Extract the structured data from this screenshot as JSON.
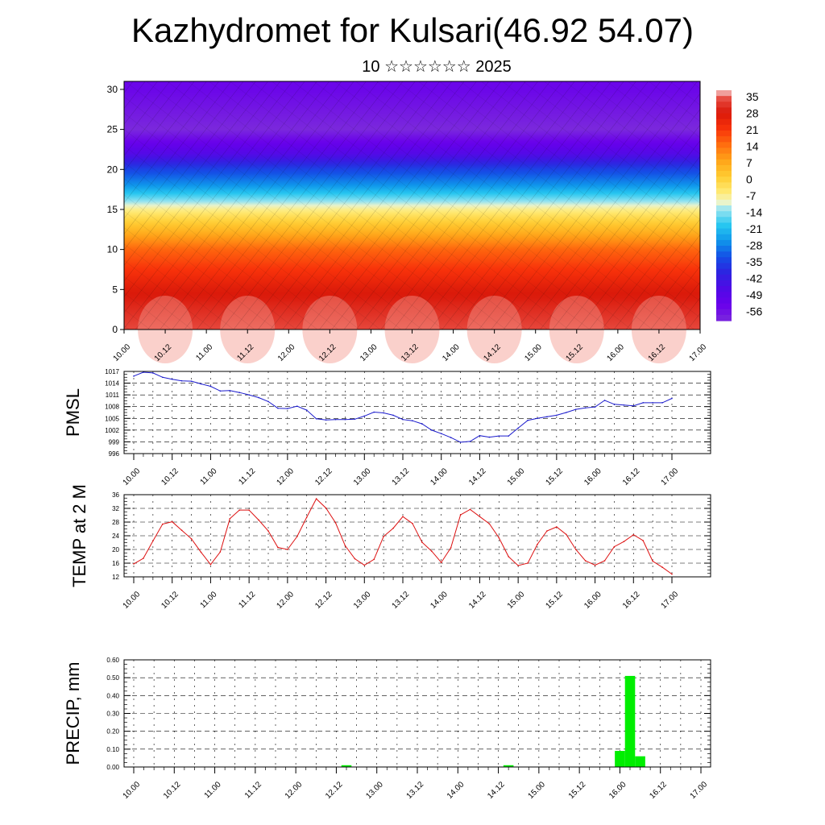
{
  "title": "Kazhydromet for Kulsari(46.92 54.07)",
  "subtitle": "10 ☆☆☆☆☆☆ 2025",
  "x_ticks": [
    "10.00",
    "10.12",
    "11.00",
    "11.12",
    "12.00",
    "12.12",
    "13.00",
    "13.12",
    "14.00",
    "14.12",
    "15.00",
    "15.12",
    "16.00",
    "16.12",
    "17.00"
  ],
  "chart_data": [
    {
      "type": "heatmap",
      "xlabel": "",
      "ylabel": "",
      "ylim": [
        0,
        30
      ],
      "y_ticks": [
        "0",
        "5",
        "10",
        "15",
        "20",
        "25",
        "30"
      ],
      "colorbar_ticks": [
        "35",
        "28",
        "21",
        "14",
        "7",
        "0",
        "-7",
        "-14",
        "-21",
        "-28",
        "-35",
        "-42",
        "-49",
        "-56"
      ],
      "colorbar_range": [
        -63,
        38
      ],
      "profile": [
        {
          "h": 0,
          "t": 34
        },
        {
          "h": 5,
          "t": 27
        },
        {
          "h": 10,
          "t": 15
        },
        {
          "h": 14,
          "t": -3
        },
        {
          "h": 15,
          "t": -8
        },
        {
          "h": 18,
          "t": -28
        },
        {
          "h": 20,
          "t": -37
        },
        {
          "h": 22,
          "t": -50
        },
        {
          "h": 25,
          "t": -63
        },
        {
          "h": 30,
          "t": -57
        }
      ]
    },
    {
      "type": "line",
      "ylabel": "PMSL",
      "ylim": [
        996,
        1017
      ],
      "y_ticks": [
        "996",
        "999",
        "1002",
        "1005",
        "1008",
        "1011",
        "1014",
        "1017"
      ],
      "color": "#1a1acc",
      "x": [
        0,
        3,
        6,
        9,
        12,
        15,
        18,
        21,
        24,
        27,
        30,
        33,
        36,
        39,
        42,
        45,
        48,
        51,
        54,
        57,
        60,
        63,
        66,
        69,
        72,
        75,
        78,
        81,
        84,
        87,
        90,
        93,
        96,
        99,
        102,
        105,
        108,
        111,
        114,
        117,
        120,
        123,
        126,
        129,
        132,
        135,
        138,
        141,
        144,
        147,
        150,
        153,
        156,
        159,
        162,
        165,
        168
      ],
      "values": [
        1015.8,
        1016.8,
        1016.6,
        1015.5,
        1015.0,
        1014.6,
        1014.5,
        1013.8,
        1013.2,
        1012.0,
        1012.1,
        1011.6,
        1011.0,
        1010.3,
        1009.3,
        1007.6,
        1007.5,
        1008.1,
        1007.1,
        1004.9,
        1004.6,
        1004.7,
        1004.7,
        1004.8,
        1005.6,
        1006.6,
        1006.4,
        1005.8,
        1004.7,
        1004.4,
        1003.6,
        1002.0,
        1001.1,
        1000.1,
        998.9,
        999.1,
        1000.6,
        1000.2,
        1000.5,
        1000.5,
        1002.5,
        1004.5,
        1005.0,
        1005.4,
        1005.8,
        1006.5,
        1007.3,
        1007.7,
        1007.9,
        1009.6,
        1008.6,
        1008.4,
        1008.2,
        1009.0,
        1009.0,
        1009.0,
        1010.1
      ]
    },
    {
      "type": "line",
      "ylabel": "TEMP at 2 M",
      "ylim": [
        12,
        36
      ],
      "y_ticks": [
        "12",
        "16",
        "20",
        "24",
        "28",
        "32",
        "36"
      ],
      "color": "#dd1111",
      "x": [
        0,
        3,
        6,
        9,
        12,
        15,
        18,
        21,
        24,
        27,
        30,
        33,
        36,
        39,
        42,
        45,
        48,
        51,
        54,
        57,
        60,
        63,
        66,
        69,
        72,
        75,
        78,
        81,
        84,
        87,
        90,
        93,
        96,
        99,
        102,
        105,
        108,
        111,
        114,
        117,
        120,
        123,
        126,
        129,
        132,
        135,
        138,
        141,
        144,
        147,
        150,
        153,
        156,
        159,
        162,
        165,
        168
      ],
      "values": [
        15.8,
        17.4,
        22.5,
        27.4,
        28.1,
        25.6,
        23.1,
        19.2,
        15.6,
        19.3,
        29.0,
        31.5,
        31.5,
        28.6,
        25.4,
        20.6,
        20.0,
        23.8,
        29.4,
        34.8,
        32.1,
        27.8,
        21.1,
        17.3,
        15.4,
        17.1,
        23.8,
        26.2,
        29.6,
        27.6,
        22.1,
        19.5,
        16.2,
        20.5,
        30.1,
        31.7,
        29.6,
        27.5,
        23.4,
        17.9,
        15.3,
        16.0,
        21.5,
        25.4,
        26.6,
        24.4,
        20.0,
        16.7,
        15.4,
        16.7,
        20.8,
        22.3,
        24.3,
        22.6,
        16.6,
        14.8,
        12.8
      ]
    },
    {
      "type": "bar",
      "ylabel": "PRECIP, mm",
      "ylim": [
        0,
        0.6
      ],
      "y_ticks": [
        "0.00",
        "0.10",
        "0.20",
        "0.30",
        "0.40",
        "0.50",
        "0.60"
      ],
      "color": "#00ee00",
      "x": [
        63,
        111,
        144,
        147,
        150
      ],
      "values": [
        0.01,
        0.01,
        0.09,
        0.51,
        0.06
      ]
    }
  ]
}
